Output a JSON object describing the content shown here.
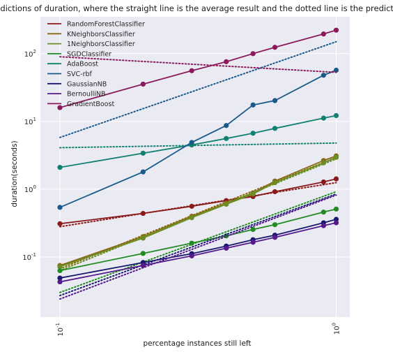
{
  "chart_data": {
    "type": "line",
    "title": "predictions of duration, where the straight line is the average result and the dotted line is the prediction",
    "xlabel": "percentage instances still left",
    "ylabel": "duration(seconds)",
    "x_scale": "log",
    "y_scale": "log",
    "xlim": [
      0.085,
      1.12
    ],
    "ylim": [
      0.013,
      350
    ],
    "x_ticks": [
      {
        "value": 0.1,
        "base": "10",
        "exp": "-1"
      },
      {
        "value": 1.0,
        "base": "10",
        "exp": "0"
      }
    ],
    "y_ticks": [
      {
        "value": 0.1,
        "base": "10",
        "exp": "-1"
      },
      {
        "value": 1,
        "base": "10",
        "exp": "0"
      },
      {
        "value": 10,
        "base": "10",
        "exp": "1"
      },
      {
        "value": 100,
        "base": "10",
        "exp": "2"
      }
    ],
    "grid": true,
    "legend_position": "top-left",
    "x": [
      0.1,
      0.2,
      0.3,
      0.4,
      0.5,
      0.6,
      0.9,
      1.0
    ],
    "series": [
      {
        "name": "RandomForestClassifier",
        "color": "#8b1a1a",
        "values": [
          0.31,
          0.44,
          0.56,
          0.68,
          0.78,
          0.92,
          1.28,
          1.42
        ],
        "prediction": [
          0.28,
          1.25
        ]
      },
      {
        "name": "KNeighborsClassifier",
        "color": "#8b6914",
        "values": [
          0.075,
          0.2,
          0.4,
          0.62,
          0.88,
          1.32,
          2.65,
          3.1
        ],
        "prediction": [
          0.067,
          2.95
        ]
      },
      {
        "name": "1NeighborsClassifier",
        "color": "#6b8e23",
        "values": [
          0.072,
          0.19,
          0.38,
          0.6,
          0.85,
          1.25,
          2.45,
          2.95
        ],
        "prediction": [
          0.063,
          2.8
        ]
      },
      {
        "name": "SGDClassifier",
        "color": "#228b22",
        "values": [
          0.063,
          0.113,
          0.16,
          0.205,
          0.255,
          0.3,
          0.46,
          0.51
        ],
        "prediction": [
          0.03,
          0.92
        ]
      },
      {
        "name": "AdaBoost",
        "color": "#108070",
        "values": [
          2.1,
          3.4,
          4.5,
          5.6,
          6.7,
          7.9,
          11.2,
          12.2
        ],
        "prediction": [
          4.1,
          4.8
        ]
      },
      {
        "name": "SVC-rbf",
        "color": "#1a5a8a",
        "values": [
          0.54,
          1.8,
          4.9,
          8.7,
          17.5,
          20.3,
          48.0,
          57.0
        ],
        "prediction": [
          5.8,
          150.0
        ]
      },
      {
        "name": "GaussianNB",
        "color": "#191970",
        "values": [
          0.049,
          0.083,
          0.112,
          0.145,
          0.18,
          0.21,
          0.32,
          0.36
        ],
        "prediction": [
          0.027,
          0.85
        ]
      },
      {
        "name": "BernoulliNB",
        "color": "#551a8b",
        "values": [
          0.043,
          0.075,
          0.104,
          0.135,
          0.165,
          0.195,
          0.29,
          0.32
        ],
        "prediction": [
          0.024,
          0.82
        ]
      },
      {
        "name": "GradientBoost",
        "color": "#8b1a5a",
        "values": [
          16.0,
          35.5,
          56.0,
          76.0,
          100.0,
          124.0,
          195.0,
          222.0
        ],
        "prediction": [
          90.0,
          53.0
        ]
      }
    ]
  }
}
